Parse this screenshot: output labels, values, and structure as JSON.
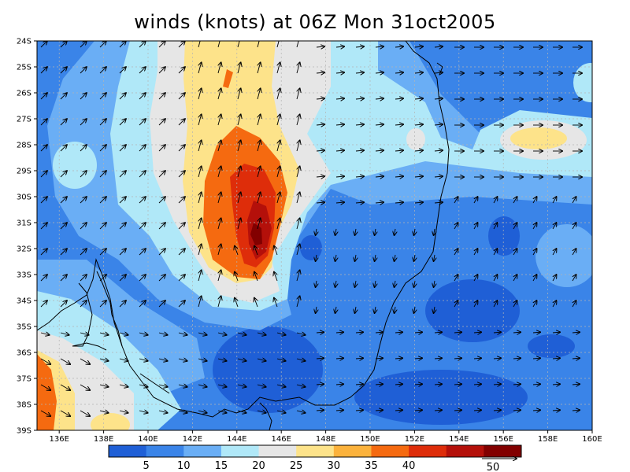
{
  "title": "winds (knots) at 06Z Mon 31oct2005",
  "lat_labels": [
    "24S",
    "25S",
    "26S",
    "27S",
    "28S",
    "29S",
    "30S",
    "31S",
    "32S",
    "33S",
    "34S",
    "35S",
    "36S",
    "37S",
    "38S",
    "39S"
  ],
  "lon_labels": [
    "136E",
    "138E",
    "140E",
    "142E",
    "144E",
    "146E",
    "148E",
    "150E",
    "152E",
    "154E",
    "156E",
    "158E",
    "160E"
  ],
  "colorbar": {
    "colors": [
      "#1f5fd6",
      "#3a84e8",
      "#6aaef5",
      "#b0e8f8",
      "#e6e6e6",
      "#fde38a",
      "#fbb23c",
      "#f56a10",
      "#de2d0a",
      "#b4100a",
      "#820000"
    ],
    "labels": [
      "5",
      "10",
      "15",
      "20",
      "25",
      "30",
      "35",
      "40"
    ]
  },
  "reference_vector": {
    "label": "50"
  },
  "colors": {
    "land_line": "#000000",
    "grid": "#b4b4b4"
  }
}
